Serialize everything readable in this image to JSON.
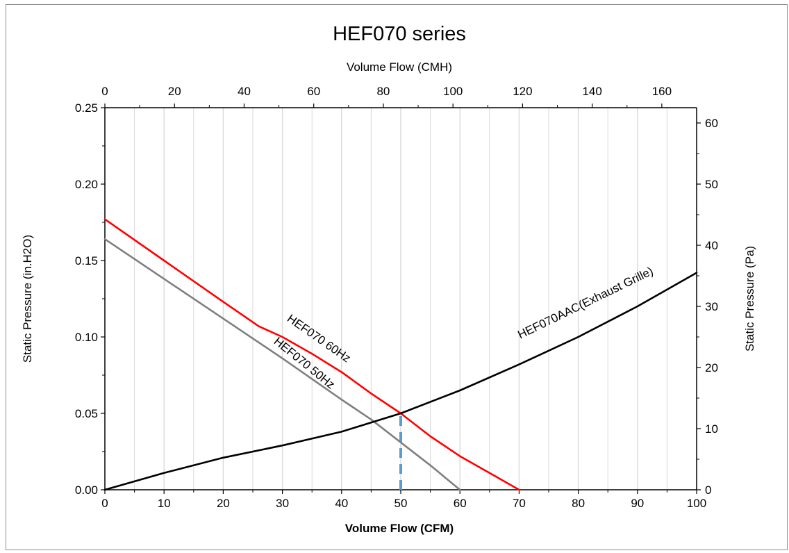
{
  "chart_data": {
    "type": "line",
    "title": "HEF070 series",
    "xlabel": "Volume Flow (CFM)",
    "x2label": "Volume Flow (CMH)",
    "ylabel": "Static Pressure (in.H2O)",
    "y2label": "Static Pressure (Pa)",
    "xlim": [
      0,
      100
    ],
    "x2lim": [
      0,
      170
    ],
    "ylim": [
      0,
      0.25
    ],
    "y2lim": [
      0,
      62.5
    ],
    "xticks": [
      "0",
      "10",
      "20",
      "30",
      "40",
      "50",
      "60",
      "70",
      "80",
      "90",
      "100"
    ],
    "x2ticks": [
      "0",
      "20",
      "40",
      "60",
      "80",
      "100",
      "120",
      "140",
      "160"
    ],
    "yticks": [
      "0.00",
      "0.05",
      "0.10",
      "0.15",
      "0.20",
      "0.25"
    ],
    "y2ticks": [
      "0",
      "10",
      "20",
      "30",
      "40",
      "50",
      "60"
    ],
    "grid": "vertical",
    "series": [
      {
        "name": "HEF070 60Hz",
        "color": "#ff0000",
        "x": [
          0,
          10,
          20,
          26,
          30,
          35,
          40,
          45,
          50,
          55,
          60,
          65,
          70
        ],
        "y": [
          0.177,
          0.15,
          0.123,
          0.107,
          0.1,
          0.089,
          0.077,
          0.063,
          0.05,
          0.035,
          0.022,
          0.011,
          0.0
        ]
      },
      {
        "name": "HEF070 50Hz",
        "color": "#7f7f7f",
        "x": [
          0,
          10,
          20,
          30,
          40,
          45,
          50,
          55,
          60
        ],
        "y": [
          0.164,
          0.138,
          0.112,
          0.086,
          0.059,
          0.046,
          0.031,
          0.016,
          0.0
        ]
      },
      {
        "name": "HEF070AAC(Exhaust Grille)",
        "color": "#000000",
        "x": [
          0,
          10,
          20,
          30,
          40,
          50,
          60,
          70,
          80,
          90,
          100
        ],
        "y": [
          0.0,
          0.011,
          0.021,
          0.029,
          0.038,
          0.05,
          0.065,
          0.082,
          0.1,
          0.12,
          0.142
        ]
      }
    ],
    "marker_line": {
      "color": "#5b9bd5",
      "x": 50,
      "y_top": 0.05
    }
  }
}
